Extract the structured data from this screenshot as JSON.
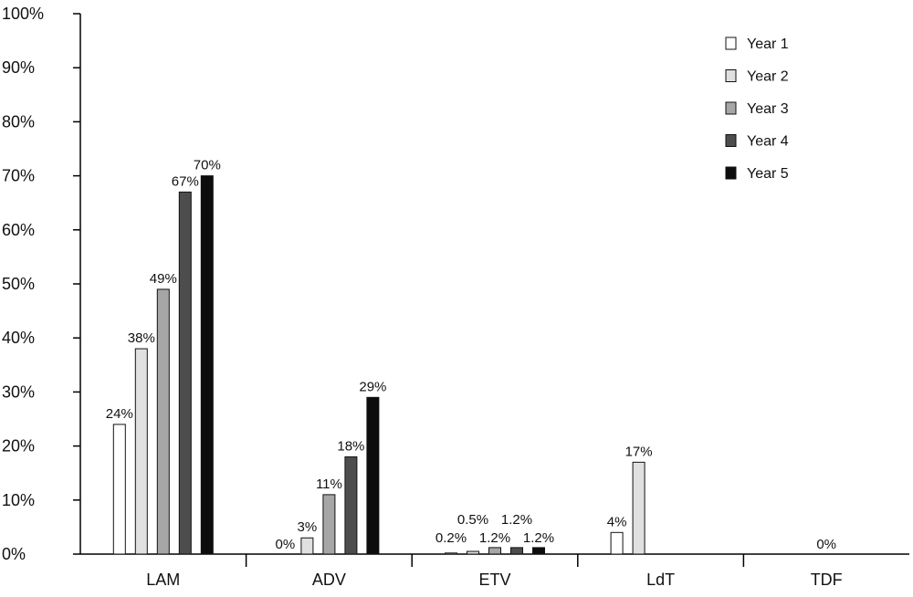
{
  "chart_data": {
    "type": "bar",
    "categories": [
      "LAM",
      "ADV",
      "ETV",
      "LdT",
      "TDF"
    ],
    "y_ticks": [
      "0%",
      "10%",
      "20%",
      "30%",
      "40%",
      "50%",
      "60%",
      "70%",
      "80%",
      "90%",
      "100%"
    ],
    "ylim": [
      0,
      100
    ],
    "grid": false,
    "legend_position": "top-right",
    "series": [
      {
        "name": "Year 1",
        "color": "#ffffff",
        "values": [
          24,
          0,
          0.2,
          4,
          null
        ]
      },
      {
        "name": "Year 2",
        "color": "#e0e0e0",
        "values": [
          38,
          3,
          0.5,
          17,
          null
        ]
      },
      {
        "name": "Year 3",
        "color": "#a6a6a6",
        "values": [
          49,
          11,
          1.2,
          null,
          null
        ]
      },
      {
        "name": "Year 4",
        "color": "#4d4d4d",
        "values": [
          67,
          18,
          1.2,
          null,
          null
        ]
      },
      {
        "name": "Year 5",
        "color": "#0d0d0d",
        "values": [
          70,
          29,
          1.2,
          null,
          null
        ]
      }
    ],
    "data_labels": [
      {
        "category": "LAM",
        "series": "Year 1",
        "text": "24%"
      },
      {
        "category": "LAM",
        "series": "Year 2",
        "text": "38%"
      },
      {
        "category": "LAM",
        "series": "Year 3",
        "text": "49%"
      },
      {
        "category": "LAM",
        "series": "Year 4",
        "text": "67%"
      },
      {
        "category": "LAM",
        "series": "Year 5",
        "text": "70%"
      },
      {
        "category": "ADV",
        "series": "Year 1",
        "text": "0%"
      },
      {
        "category": "ADV",
        "series": "Year 2",
        "text": "3%"
      },
      {
        "category": "ADV",
        "series": "Year 3",
        "text": "11%"
      },
      {
        "category": "ADV",
        "series": "Year 4",
        "text": "18%"
      },
      {
        "category": "ADV",
        "series": "Year 5",
        "text": "29%"
      },
      {
        "category": "ETV",
        "series": "Year 1",
        "text": "0.2%"
      },
      {
        "category": "ETV",
        "series": "Year 2",
        "text": "0.5%"
      },
      {
        "category": "ETV",
        "series": "Year 3",
        "text": "1.2%"
      },
      {
        "category": "ETV",
        "series": "Year 4",
        "text": "1.2%"
      },
      {
        "category": "ETV",
        "series": "Year 5",
        "text": "1.2%"
      },
      {
        "category": "LdT",
        "series": "Year 1",
        "text": "4%"
      },
      {
        "category": "LdT",
        "series": "Year 2",
        "text": "17%"
      },
      {
        "category": "TDF",
        "series": "Year 3",
        "text": "0%"
      }
    ]
  }
}
